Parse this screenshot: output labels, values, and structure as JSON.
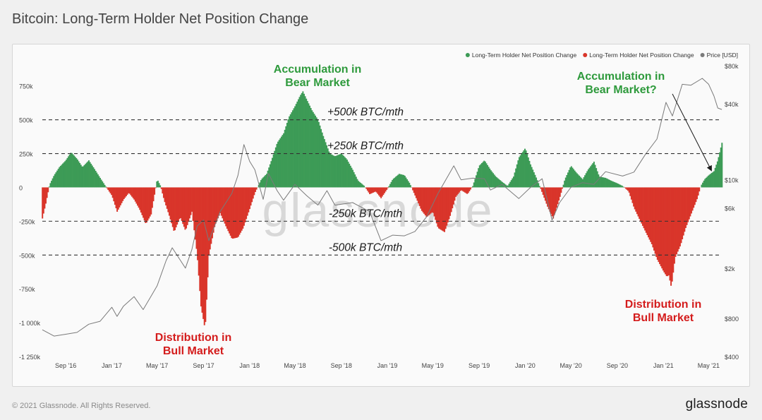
{
  "title": "Bitcoin: Long-Term Holder Net Position Change",
  "footer": {
    "copyright": "© 2021 Glassnode. All Rights Reserved.",
    "brand": "glassnode"
  },
  "chart_data": {
    "type": "area",
    "watermark": "glassnode",
    "legend_position": "top-right",
    "legend": [
      {
        "label": "Long-Term Holder Net Position Change",
        "color": "#3d9b56"
      },
      {
        "label": "Long-Term Holder Net Position Change",
        "color": "#d9352a"
      },
      {
        "label": "Price [USD]",
        "color": "#7a7a7a"
      }
    ],
    "colors": {
      "positive": "#3d9b56",
      "negative": "#d9352a",
      "price": "#7a7a7a",
      "reference": "#333333"
    },
    "x_start": "2016-07",
    "x_end": "2021-06",
    "x_ticks": [
      "Sep '16",
      "Jan '17",
      "May '17",
      "Sep '17",
      "Jan '18",
      "May '18",
      "Sep '18",
      "Jan '19",
      "May '19",
      "Sep '19",
      "Jan '20",
      "May '20",
      "Sep '20",
      "Jan '21",
      "May '21"
    ],
    "x_tick_dates": [
      "2016-09",
      "2017-01",
      "2017-05",
      "2017-09",
      "2018-01",
      "2018-05",
      "2018-09",
      "2019-01",
      "2019-05",
      "2019-09",
      "2020-01",
      "2020-05",
      "2020-09",
      "2021-01",
      "2021-05"
    ],
    "y_left": {
      "ylim": [
        -1250000,
        900000
      ],
      "ticks": [
        750000,
        500000,
        250000,
        0,
        -250000,
        -500000,
        -750000,
        -1000000,
        -1250000
      ],
      "tick_labels": [
        "750k",
        "500k",
        "250k",
        "0",
        "-250k",
        "-500k",
        "-750k",
        "-1 000k",
        "-1 250k"
      ]
    },
    "y_right": {
      "scale": "log",
      "ylim": [
        400,
        80000
      ],
      "ticks": [
        80000,
        40000,
        10000,
        6000,
        2000,
        800,
        400
      ],
      "tick_labels": [
        "$80k",
        "$40k",
        "$10k",
        "$6k",
        "$2k",
        "$800",
        "$400"
      ]
    },
    "reference_lines": [
      {
        "value": 500000,
        "label": "+500k BTC/mth"
      },
      {
        "value": 250000,
        "label": "+250k BTC/mth"
      },
      {
        "value": -250000,
        "label": "-250k BTC/mth"
      },
      {
        "value": -500000,
        "label": "-500k BTC/mth"
      }
    ],
    "annotations": [
      {
        "lines": [
          "Accumulation in",
          "Bear Market"
        ],
        "color": "#2e9a3c",
        "date": "2018-06"
      },
      {
        "lines": [
          "Accumulation in",
          "Bear Market?"
        ],
        "color": "#2e9a3c",
        "date": "2021-01"
      },
      {
        "lines": [
          "Distribution in",
          "Bull Market"
        ],
        "color": "#d41c1c",
        "date": "2017-09"
      },
      {
        "lines": [
          "Distribution in",
          "Bull Market"
        ],
        "color": "#d41c1c",
        "date": "2021-02"
      }
    ],
    "series": [
      {
        "name": "Long-Term Holder Net Position Change",
        "points": [
          [
            "2016-07-01",
            -230000
          ],
          [
            "2016-07-10",
            -120000
          ],
          [
            "2016-07-20",
            20000
          ],
          [
            "2016-08-01",
            90000
          ],
          [
            "2016-08-15",
            150000
          ],
          [
            "2016-09-01",
            200000
          ],
          [
            "2016-09-15",
            260000
          ],
          [
            "2016-10-01",
            210000
          ],
          [
            "2016-10-15",
            150000
          ],
          [
            "2016-11-01",
            200000
          ],
          [
            "2016-11-15",
            140000
          ],
          [
            "2016-12-01",
            70000
          ],
          [
            "2016-12-15",
            10000
          ],
          [
            "2017-01-01",
            -60000
          ],
          [
            "2017-01-15",
            -180000
          ],
          [
            "2017-02-01",
            -90000
          ],
          [
            "2017-02-15",
            -40000
          ],
          [
            "2017-03-01",
            -90000
          ],
          [
            "2017-03-15",
            -160000
          ],
          [
            "2017-04-01",
            -270000
          ],
          [
            "2017-04-15",
            -200000
          ],
          [
            "2017-05-01",
            60000
          ],
          [
            "2017-05-10",
            10000
          ],
          [
            "2017-05-20",
            -100000
          ],
          [
            "2017-06-01",
            -200000
          ],
          [
            "2017-06-15",
            -330000
          ],
          [
            "2017-07-01",
            -220000
          ],
          [
            "2017-07-15",
            -320000
          ],
          [
            "2017-08-01",
            -180000
          ],
          [
            "2017-08-15",
            -500000
          ],
          [
            "2017-08-25",
            -880000
          ],
          [
            "2017-09-05",
            -1050000
          ],
          [
            "2017-09-15",
            -500000
          ],
          [
            "2017-10-01",
            -280000
          ],
          [
            "2017-10-15",
            -190000
          ],
          [
            "2017-11-01",
            -300000
          ],
          [
            "2017-11-15",
            -380000
          ],
          [
            "2017-12-01",
            -370000
          ],
          [
            "2017-12-15",
            -300000
          ],
          [
            "2018-01-01",
            -160000
          ],
          [
            "2018-01-15",
            -40000
          ],
          [
            "2018-02-01",
            60000
          ],
          [
            "2018-02-15",
            100000
          ],
          [
            "2018-03-01",
            210000
          ],
          [
            "2018-03-15",
            330000
          ],
          [
            "2018-04-01",
            400000
          ],
          [
            "2018-04-15",
            520000
          ],
          [
            "2018-05-01",
            600000
          ],
          [
            "2018-05-15",
            680000
          ],
          [
            "2018-05-22",
            710000
          ],
          [
            "2018-06-01",
            650000
          ],
          [
            "2018-06-15",
            570000
          ],
          [
            "2018-07-01",
            500000
          ],
          [
            "2018-07-15",
            380000
          ],
          [
            "2018-08-01",
            250000
          ],
          [
            "2018-08-15",
            230000
          ],
          [
            "2018-09-01",
            250000
          ],
          [
            "2018-09-15",
            210000
          ],
          [
            "2018-10-01",
            130000
          ],
          [
            "2018-10-15",
            50000
          ],
          [
            "2018-11-01",
            10000
          ],
          [
            "2018-11-15",
            -50000
          ],
          [
            "2018-12-01",
            -30000
          ],
          [
            "2018-12-15",
            -80000
          ],
          [
            "2019-01-01",
            -10000
          ],
          [
            "2019-01-15",
            60000
          ],
          [
            "2019-02-01",
            100000
          ],
          [
            "2019-02-15",
            90000
          ],
          [
            "2019-03-01",
            30000
          ],
          [
            "2019-03-15",
            -60000
          ],
          [
            "2019-04-01",
            -170000
          ],
          [
            "2019-04-15",
            -220000
          ],
          [
            "2019-05-01",
            -180000
          ],
          [
            "2019-05-15",
            -300000
          ],
          [
            "2019-06-01",
            -330000
          ],
          [
            "2019-06-15",
            -220000
          ],
          [
            "2019-07-01",
            -70000
          ],
          [
            "2019-07-15",
            -20000
          ],
          [
            "2019-08-01",
            -50000
          ],
          [
            "2019-08-15",
            10000
          ],
          [
            "2019-09-01",
            160000
          ],
          [
            "2019-09-15",
            200000
          ],
          [
            "2019-10-01",
            130000
          ],
          [
            "2019-10-15",
            80000
          ],
          [
            "2019-11-01",
            40000
          ],
          [
            "2019-11-15",
            10000
          ],
          [
            "2019-12-01",
            80000
          ],
          [
            "2019-12-15",
            220000
          ],
          [
            "2020-01-01",
            290000
          ],
          [
            "2020-01-15",
            170000
          ],
          [
            "2020-02-01",
            60000
          ],
          [
            "2020-02-15",
            -40000
          ],
          [
            "2020-03-01",
            -150000
          ],
          [
            "2020-03-15",
            -230000
          ],
          [
            "2020-04-01",
            -80000
          ],
          [
            "2020-04-15",
            60000
          ],
          [
            "2020-05-01",
            160000
          ],
          [
            "2020-05-15",
            110000
          ],
          [
            "2020-06-01",
            60000
          ],
          [
            "2020-06-15",
            130000
          ],
          [
            "2020-07-01",
            190000
          ],
          [
            "2020-07-15",
            80000
          ],
          [
            "2020-08-01",
            70000
          ],
          [
            "2020-08-15",
            50000
          ],
          [
            "2020-09-01",
            30000
          ],
          [
            "2020-09-15",
            10000
          ],
          [
            "2020-10-01",
            -30000
          ],
          [
            "2020-10-15",
            -150000
          ],
          [
            "2020-11-01",
            -250000
          ],
          [
            "2020-11-15",
            -330000
          ],
          [
            "2020-12-01",
            -420000
          ],
          [
            "2020-12-15",
            -530000
          ],
          [
            "2021-01-01",
            -620000
          ],
          [
            "2021-01-10",
            -660000
          ],
          [
            "2021-01-15",
            -650000
          ],
          [
            "2021-01-22",
            -740000
          ],
          [
            "2021-02-01",
            -520000
          ],
          [
            "2021-02-15",
            -430000
          ],
          [
            "2021-03-01",
            -300000
          ],
          [
            "2021-03-15",
            -200000
          ],
          [
            "2021-04-01",
            -80000
          ],
          [
            "2021-04-10",
            10000
          ],
          [
            "2021-04-20",
            60000
          ],
          [
            "2021-05-01",
            90000
          ],
          [
            "2021-05-15",
            120000
          ],
          [
            "2021-05-25",
            200000
          ],
          [
            "2021-06-05",
            330000
          ]
        ]
      },
      {
        "name": "Price [USD]",
        "axis": "right",
        "points": [
          [
            "2016-07-01",
            650
          ],
          [
            "2016-08-01",
            580
          ],
          [
            "2016-09-01",
            600
          ],
          [
            "2016-10-01",
            620
          ],
          [
            "2016-11-01",
            720
          ],
          [
            "2016-12-01",
            760
          ],
          [
            "2017-01-01",
            980
          ],
          [
            "2017-01-15",
            830
          ],
          [
            "2017-02-01",
            1000
          ],
          [
            "2017-03-01",
            1190
          ],
          [
            "2017-03-25",
            940
          ],
          [
            "2017-04-15",
            1200
          ],
          [
            "2017-05-01",
            1450
          ],
          [
            "2017-05-25",
            2300
          ],
          [
            "2017-06-10",
            2900
          ],
          [
            "2017-07-15",
            2000
          ],
          [
            "2017-08-01",
            2800
          ],
          [
            "2017-08-15",
            4300
          ],
          [
            "2017-09-01",
            4800
          ],
          [
            "2017-09-15",
            3300
          ],
          [
            "2017-10-15",
            5600
          ],
          [
            "2017-11-15",
            7800
          ],
          [
            "2017-12-01",
            10800
          ],
          [
            "2017-12-17",
            19000
          ],
          [
            "2018-01-01",
            14000
          ],
          [
            "2018-01-15",
            12000
          ],
          [
            "2018-02-06",
            7000
          ],
          [
            "2018-02-20",
            11200
          ],
          [
            "2018-03-15",
            8200
          ],
          [
            "2018-04-01",
            6900
          ],
          [
            "2018-05-01",
            9200
          ],
          [
            "2018-06-01",
            7500
          ],
          [
            "2018-07-01",
            6300
          ],
          [
            "2018-07-25",
            8200
          ],
          [
            "2018-08-15",
            6300
          ],
          [
            "2018-10-01",
            6600
          ],
          [
            "2018-11-15",
            5600
          ],
          [
            "2018-12-15",
            3300
          ],
          [
            "2019-01-15",
            3650
          ],
          [
            "2019-02-15",
            3600
          ],
          [
            "2019-03-15",
            3900
          ],
          [
            "2019-04-15",
            5100
          ],
          [
            "2019-05-15",
            7800
          ],
          [
            "2019-06-26",
            12900
          ],
          [
            "2019-07-15",
            10000
          ],
          [
            "2019-08-15",
            10300
          ],
          [
            "2019-09-15",
            10200
          ],
          [
            "2019-10-01",
            8300
          ],
          [
            "2019-11-01",
            9200
          ],
          [
            "2019-12-15",
            7100
          ],
          [
            "2020-01-15",
            8700
          ],
          [
            "2020-02-15",
            10200
          ],
          [
            "2020-03-12",
            4800
          ],
          [
            "2020-04-01",
            6600
          ],
          [
            "2020-05-01",
            8700
          ],
          [
            "2020-06-01",
            9500
          ],
          [
            "2020-07-01",
            9200
          ],
          [
            "2020-08-01",
            11600
          ],
          [
            "2020-09-15",
            10700
          ],
          [
            "2020-10-15",
            11500
          ],
          [
            "2020-11-15",
            16000
          ],
          [
            "2020-12-15",
            21000
          ],
          [
            "2021-01-08",
            41000
          ],
          [
            "2021-01-25",
            32000
          ],
          [
            "2021-02-20",
            57000
          ],
          [
            "2021-03-15",
            56000
          ],
          [
            "2021-04-14",
            63500
          ],
          [
            "2021-05-01",
            57000
          ],
          [
            "2021-05-15",
            46000
          ],
          [
            "2021-05-25",
            37000
          ],
          [
            "2021-06-05",
            36000
          ]
        ]
      }
    ]
  }
}
